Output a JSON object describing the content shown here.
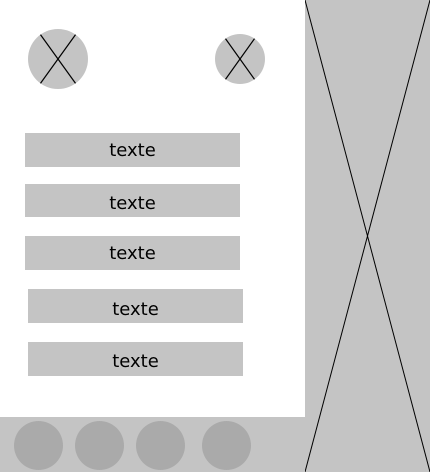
{
  "colors": {
    "placeholder": "#c4c4c4",
    "dot": "#aaaaaa",
    "background": "#ffffff"
  },
  "top_icons": [
    {
      "name": "image-placeholder-icon-left"
    },
    {
      "name": "image-placeholder-icon-right"
    }
  ],
  "buttons": [
    {
      "label": "texte"
    },
    {
      "label": "texte"
    },
    {
      "label": "texte"
    },
    {
      "label": "texte"
    },
    {
      "label": "texte"
    }
  ],
  "bottom_nav": {
    "dot_count": 4
  }
}
